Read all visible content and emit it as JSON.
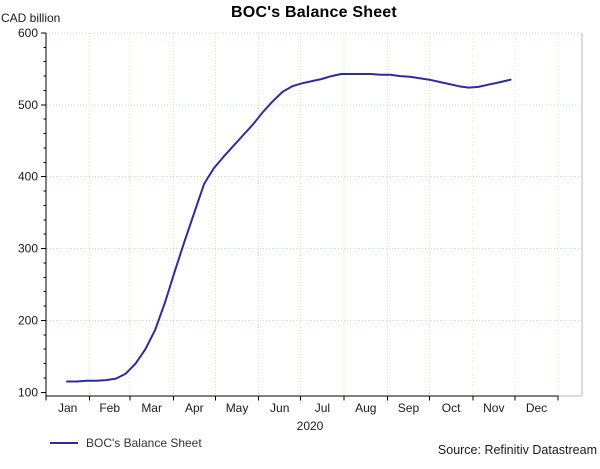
{
  "page": {
    "title": "BOC's Balance Sheet"
  },
  "footer": {
    "source": "Source: Refinitiv Datastream"
  },
  "legend": {
    "label": "BOC's Balance Sheet"
  },
  "colors": {
    "line": "#2b2ba6",
    "axis": "#000000",
    "grid_horizontal": "#c9d8cd",
    "grid_vertical": "#ecdcc4",
    "frame": "#b9b9b9",
    "text": "#1a1a1a"
  },
  "chart_data": {
    "type": "line",
    "title": "BOC's Balance Sheet",
    "ylabel": "CAD billion",
    "xlabel": "",
    "year_label": "2020",
    "x_month_labels": [
      "Jan",
      "Feb",
      "Mar",
      "Apr",
      "May",
      "Jun",
      "Jul",
      "Aug",
      "Sep",
      "Oct",
      "Nov",
      "Dec"
    ],
    "month_boundary_days": [
      0,
      31,
      60,
      91,
      121,
      152,
      182,
      213,
      244,
      274,
      305,
      335,
      366
    ],
    "x_range_days": [
      0,
      366
    ],
    "ylim": [
      100,
      600
    ],
    "y_major_ticks": [
      100,
      200,
      300,
      400,
      500,
      600
    ],
    "y_minor_step": 20,
    "grid": "dotted",
    "legend_position": "bottom-left",
    "series": [
      {
        "name": "BOC's Balance Sheet",
        "unit": "CAD billion",
        "color": "#2b2ba6",
        "points_format": [
          "day_of_year_2020",
          "cad_billion"
        ],
        "points": [
          [
            15,
            115
          ],
          [
            22,
            115
          ],
          [
            29,
            116
          ],
          [
            36,
            116
          ],
          [
            43,
            117
          ],
          [
            50,
            119
          ],
          [
            57,
            126
          ],
          [
            64,
            140
          ],
          [
            71,
            160
          ],
          [
            78,
            187
          ],
          [
            85,
            225
          ],
          [
            92,
            268
          ],
          [
            99,
            310
          ],
          [
            106,
            350
          ],
          [
            113,
            390
          ],
          [
            120,
            412
          ],
          [
            127,
            428
          ],
          [
            134,
            443
          ],
          [
            141,
            458
          ],
          [
            148,
            473
          ],
          [
            155,
            490
          ],
          [
            162,
            505
          ],
          [
            169,
            518
          ],
          [
            176,
            526
          ],
          [
            183,
            530
          ],
          [
            190,
            533
          ],
          [
            197,
            536
          ],
          [
            204,
            540
          ],
          [
            211,
            543
          ],
          [
            218,
            543
          ],
          [
            225,
            543
          ],
          [
            232,
            543
          ],
          [
            239,
            542
          ],
          [
            246,
            542
          ],
          [
            253,
            540
          ],
          [
            260,
            539
          ],
          [
            267,
            537
          ],
          [
            274,
            535
          ],
          [
            281,
            532
          ],
          [
            288,
            529
          ],
          [
            295,
            526
          ],
          [
            302,
            524
          ],
          [
            309,
            525
          ],
          [
            316,
            528
          ],
          [
            323,
            531
          ],
          [
            332,
            535
          ]
        ]
      }
    ]
  }
}
